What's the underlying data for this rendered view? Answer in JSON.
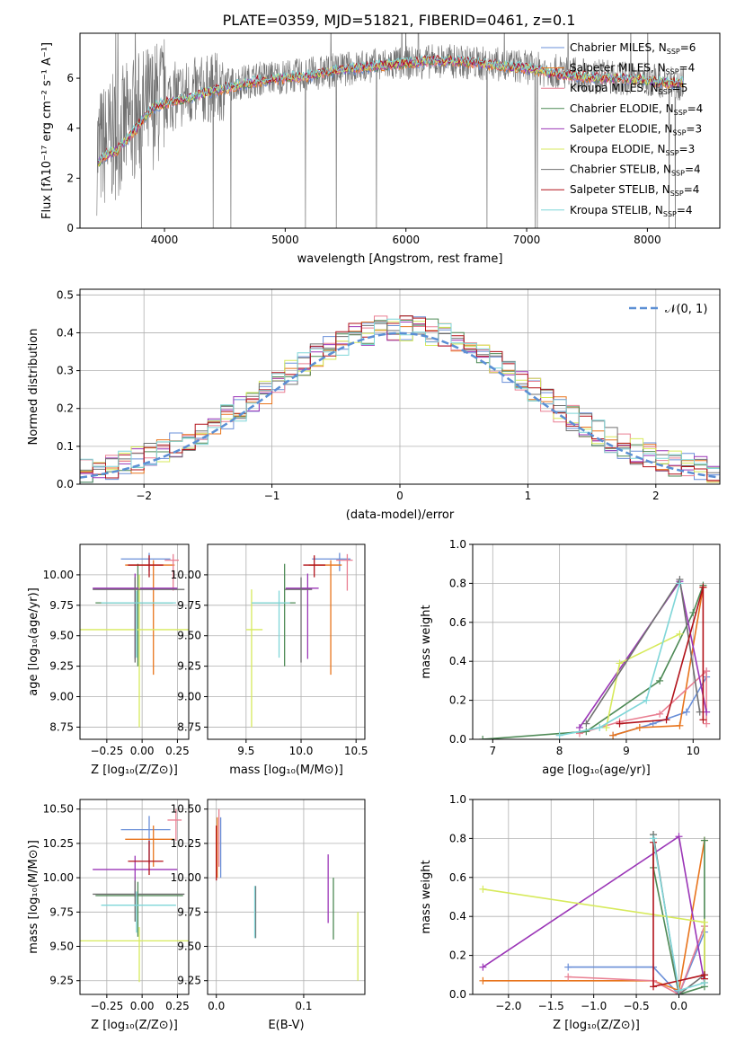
{
  "figure": {
    "title": "PLATE=0359, MJD=51821, FIBERID=0461, z=0.1"
  },
  "colors": {
    "Chabrier MILES": "#6a8fd8",
    "Salpeter MILES": "#e8741c",
    "Kroupa MILES": "#e97f92",
    "Chabrier ELODIE": "#4e8a56",
    "Salpeter ELODIE": "#9b36b7",
    "Kroupa ELODIE": "#d7ea5c",
    "Chabrier STELIB": "#707070",
    "Salpeter STELIB": "#b2121a",
    "Kroupa STELIB": "#7fd6d8",
    "normal_fit": "#5b8fd4"
  },
  "chart_data": [
    {
      "id": "spectrum",
      "type": "line",
      "xlabel": "wavelength [Angstrom, rest frame]",
      "ylabel": "Flux [fλ10⁻¹⁷ erg cm⁻² s⁻¹ A⁻¹]",
      "xlim": [
        3300,
        8600
      ],
      "ylim": [
        0,
        7.8
      ],
      "xticks": [
        4000,
        5000,
        6000,
        7000,
        8000
      ],
      "yticks": [
        0,
        2,
        4,
        6
      ],
      "grid": false,
      "legend_position": "right",
      "legend": [
        {
          "name": "Chabrier MILES",
          "nssp": "6"
        },
        {
          "name": "Salpeter MILES",
          "nssp": "4"
        },
        {
          "name": "Kroupa MILES",
          "nssp": "5"
        },
        {
          "name": "Chabrier ELODIE",
          "nssp": "4"
        },
        {
          "name": "Salpeter ELODIE",
          "nssp": "3"
        },
        {
          "name": "Kroupa ELODIE",
          "nssp": "3"
        },
        {
          "name": "Chabrier STELIB",
          "nssp": "4"
        },
        {
          "name": "Salpeter STELIB",
          "nssp": "4"
        },
        {
          "name": "Kroupa STELIB",
          "nssp": "4"
        }
      ],
      "legend_sub": "SSP",
      "data_series": {
        "name": "Chabrier STELIB",
        "x": [
          3450,
          3600,
          3800,
          4000,
          4200,
          4500,
          4800,
          5100,
          5400,
          5700,
          6000,
          6300,
          6600,
          6900,
          7200,
          7500,
          7800,
          8100,
          8300
        ],
        "y": [
          3.1,
          3.7,
          4.6,
          5.2,
          5.4,
          5.7,
          6.0,
          6.1,
          6.3,
          6.5,
          6.6,
          6.7,
          6.6,
          6.5,
          6.3,
          6.1,
          6.0,
          5.9,
          5.8
        ]
      },
      "model_x": [
        3450,
        3500,
        3600,
        3700,
        3800,
        3900,
        4000,
        4200,
        4400,
        4600,
        4800,
        5000,
        5200,
        5400,
        5600,
        5800,
        6000,
        6200,
        6400,
        6600,
        6800,
        7000,
        7200,
        7400,
        7600,
        7800,
        8000,
        8200,
        8300
      ],
      "model_y": [
        2.6,
        2.9,
        3.1,
        3.6,
        4.2,
        4.8,
        5.0,
        5.2,
        5.5,
        5.7,
        5.9,
        6.0,
        6.1,
        6.3,
        6.4,
        6.5,
        6.6,
        6.7,
        6.7,
        6.6,
        6.5,
        6.4,
        6.2,
        6.1,
        6.0,
        6.0,
        5.9,
        5.8,
        5.8
      ]
    },
    {
      "id": "residuals",
      "type": "area",
      "xlabel": "(data-model)/error",
      "ylabel": "Normed distribution",
      "xlim": [
        -2.5,
        2.5
      ],
      "ylim": [
        0,
        0.515
      ],
      "xticks": [
        -2,
        -1,
        0,
        1,
        2
      ],
      "yticks": [
        0.0,
        0.1,
        0.2,
        0.3,
        0.4,
        0.5
      ],
      "grid": true,
      "legend_position": "upper right",
      "normal_label": "𝒩(0, 1)",
      "bin_width": 0.1
    },
    {
      "id": "age-Z",
      "type": "scatter",
      "xlabel": "Z [log₁₀(Z/Z⊙)]",
      "ylabel": "age  [log₁₀(age/yr)]",
      "xlim": [
        -0.44,
        0.33
      ],
      "ylim": [
        8.65,
        10.25
      ],
      "xticks": [
        -0.25,
        0.0,
        0.25
      ],
      "yticks": [
        8.75,
        9.0,
        9.25,
        9.5,
        9.75,
        10.0
      ],
      "grid": true,
      "points": [
        {
          "series": "Chabrier MILES",
          "x": 0.05,
          "y": 10.13,
          "xerr": [
            0.2,
            0.15
          ],
          "yerr": [
            0.1,
            0.05
          ]
        },
        {
          "series": "Salpeter MILES",
          "x": 0.08,
          "y": 10.08,
          "xerr": [
            0.2,
            0.15
          ],
          "yerr": [
            0.9,
            0.04
          ]
        },
        {
          "series": "Kroupa MILES",
          "x": 0.22,
          "y": 10.12,
          "xerr": [
            0.06,
            0.04
          ],
          "yerr": [
            0.25,
            0.05
          ]
        },
        {
          "series": "Chabrier ELODIE",
          "x": -0.03,
          "y": 9.77,
          "xerr": [
            0.3,
            0.25
          ],
          "yerr": [
            0.52,
            0.32
          ]
        },
        {
          "series": "Salpeter ELODIE",
          "x": -0.05,
          "y": 9.89,
          "xerr": [
            0.3,
            0.3
          ],
          "yerr": [
            0.58,
            0.12
          ]
        },
        {
          "series": "Kroupa ELODIE",
          "x": -0.02,
          "y": 9.55,
          "xerr": [
            0.44,
            0.35
          ],
          "yerr": [
            0.8,
            0.45
          ]
        },
        {
          "series": "Chabrier STELIB",
          "x": -0.05,
          "y": 9.88,
          "xerr": [
            0.3,
            0.35
          ],
          "yerr": [
            0.6,
            0.1
          ]
        },
        {
          "series": "Salpeter STELIB",
          "x": 0.05,
          "y": 10.08,
          "xerr": [
            0.15,
            0.1
          ],
          "yerr": [
            0.1,
            0.08
          ]
        },
        {
          "series": "Kroupa STELIB",
          "x": -0.04,
          "y": 9.77,
          "xerr": [
            0.25,
            0.28
          ],
          "yerr": [
            0.45,
            0.1
          ]
        }
      ]
    },
    {
      "id": "age-mass",
      "type": "scatter",
      "xlabel": "mass [log₁₀(M/M⊙)]",
      "ylabel": "",
      "xlim": [
        9.15,
        10.58
      ],
      "ylim": [
        8.65,
        10.25
      ],
      "xticks": [
        9.5,
        10.0,
        10.5
      ],
      "yticks": [
        8.75,
        9.0,
        9.25,
        9.5,
        9.75,
        10.0
      ],
      "grid": true,
      "points": [
        {
          "series": "Chabrier MILES",
          "x": 10.35,
          "y": 10.13,
          "xerr": [
            0.25,
            0.1
          ],
          "yerr": [
            0.1,
            0.05
          ]
        },
        {
          "series": "Salpeter MILES",
          "x": 10.27,
          "y": 10.08,
          "xerr": [
            0.2,
            0.1
          ],
          "yerr": [
            0.9,
            0.04
          ]
        },
        {
          "series": "Kroupa MILES",
          "x": 10.42,
          "y": 10.12,
          "xerr": [
            0.1,
            0.05
          ],
          "yerr": [
            0.25,
            0.05
          ]
        },
        {
          "series": "Chabrier ELODIE",
          "x": 9.85,
          "y": 9.77,
          "xerr": [
            0.3,
            0.1
          ],
          "yerr": [
            0.52,
            0.32
          ]
        },
        {
          "series": "Salpeter ELODIE",
          "x": 10.06,
          "y": 9.89,
          "xerr": [
            0.2,
            0.1
          ],
          "yerr": [
            0.58,
            0.12
          ]
        },
        {
          "series": "Kroupa ELODIE",
          "x": 9.55,
          "y": 9.55,
          "xerr": [
            0.05,
            0.1
          ],
          "yerr": [
            0.8,
            0.33
          ]
        },
        {
          "series": "Chabrier STELIB",
          "x": 10.0,
          "y": 9.88,
          "xerr": [
            0.15,
            0.1
          ],
          "yerr": [
            0.6,
            0.1
          ]
        },
        {
          "series": "Salpeter STELIB",
          "x": 10.12,
          "y": 10.08,
          "xerr": [
            0.1,
            0.1
          ],
          "yerr": [
            0.1,
            0.08
          ]
        },
        {
          "series": "Kroupa STELIB",
          "x": 9.8,
          "y": 9.77,
          "xerr": [
            0.25,
            0.1
          ],
          "yerr": [
            0.45,
            0.1
          ]
        }
      ]
    },
    {
      "id": "weight-age",
      "type": "line",
      "xlabel": "age  [log₁₀(age/yr)]",
      "ylabel": "mass weight",
      "xlim": [
        6.7,
        10.4
      ],
      "ylim": [
        0,
        1.0
      ],
      "xticks": [
        7,
        8,
        9,
        10
      ],
      "yticks": [
        0.0,
        0.2,
        0.4,
        0.6,
        0.8,
        1.0
      ],
      "grid": true,
      "series": [
        {
          "name": "Chabrier MILES",
          "x": [
            8.8,
            9.4,
            9.9,
            10.2,
            10.2
          ],
          "y": [
            0.02,
            0.08,
            0.14,
            0.32,
            0.35
          ]
        },
        {
          "name": "Salpeter MILES",
          "x": [
            8.8,
            9.2,
            9.8,
            10.15
          ],
          "y": [
            0.02,
            0.06,
            0.07,
            0.78
          ]
        },
        {
          "name": "Kroupa MILES",
          "x": [
            8.3,
            8.9,
            9.5,
            10.2,
            10.2
          ],
          "y": [
            0.03,
            0.09,
            0.13,
            0.35,
            0.08
          ]
        },
        {
          "name": "Chabrier ELODIE",
          "x": [
            6.85,
            8.4,
            9.5,
            10.0,
            10.15
          ],
          "y": [
            0.0,
            0.04,
            0.3,
            0.65,
            0.79
          ]
        },
        {
          "name": "Salpeter ELODIE",
          "x": [
            8.3,
            9.8,
            10.2
          ],
          "y": [
            0.06,
            0.81,
            0.14
          ]
        },
        {
          "name": "Kroupa ELODIE",
          "x": [
            8.7,
            8.9,
            9.8
          ],
          "y": [
            0.06,
            0.39,
            0.54
          ]
        },
        {
          "name": "Chabrier STELIB",
          "x": [
            8.4,
            9.8,
            10.1
          ],
          "y": [
            0.08,
            0.82,
            0.14
          ]
        },
        {
          "name": "Salpeter STELIB",
          "x": [
            8.9,
            9.6,
            10.15,
            10.15
          ],
          "y": [
            0.08,
            0.1,
            0.78,
            0.1
          ]
        },
        {
          "name": "Kroupa STELIB",
          "x": [
            8.0,
            8.6,
            9.3,
            9.8
          ],
          "y": [
            0.02,
            0.06,
            0.2,
            0.8
          ]
        }
      ]
    },
    {
      "id": "mass-Z",
      "type": "scatter",
      "xlabel": "Z [log₁₀(Z/Z⊙)]",
      "ylabel": "mass [log₁₀(M/M⊙)]",
      "xlim": [
        -0.44,
        0.33
      ],
      "ylim": [
        9.15,
        10.57
      ],
      "xticks": [
        -0.25,
        0.0,
        0.25
      ],
      "yticks": [
        9.25,
        9.5,
        9.75,
        10.0,
        10.25,
        10.5
      ],
      "grid": true,
      "points": [
        {
          "series": "Chabrier MILES",
          "x": 0.05,
          "y": 10.35,
          "xerr": [
            0.2,
            0.15
          ],
          "yerr": [
            0.25,
            0.1
          ]
        },
        {
          "series": "Salpeter MILES",
          "x": 0.08,
          "y": 10.28,
          "xerr": [
            0.2,
            0.15
          ],
          "yerr": [
            0.2,
            0.1
          ]
        },
        {
          "series": "Kroupa MILES",
          "x": 0.24,
          "y": 10.42,
          "xerr": [
            0.06,
            0.04
          ],
          "yerr": [
            0.15,
            0.08
          ]
        },
        {
          "series": "Chabrier ELODIE",
          "x": -0.03,
          "y": 9.87,
          "xerr": [
            0.3,
            0.32
          ],
          "yerr": [
            0.3,
            0.1
          ]
        },
        {
          "series": "Salpeter ELODIE",
          "x": -0.05,
          "y": 10.06,
          "xerr": [
            0.3,
            0.3
          ],
          "yerr": [
            0.2,
            0.1
          ]
        },
        {
          "series": "Kroupa ELODIE",
          "x": -0.02,
          "y": 9.54,
          "xerr": [
            0.44,
            0.35
          ],
          "yerr": [
            0.3,
            0.1
          ]
        },
        {
          "series": "Chabrier STELIB",
          "x": -0.05,
          "y": 9.88,
          "xerr": [
            0.3,
            0.35
          ],
          "yerr": [
            0.2,
            0.1
          ]
        },
        {
          "series": "Salpeter STELIB",
          "x": 0.05,
          "y": 10.12,
          "xerr": [
            0.15,
            0.1
          ],
          "yerr": [
            0.1,
            0.15
          ]
        },
        {
          "series": "Kroupa STELIB",
          "x": -0.04,
          "y": 9.8,
          "xerr": [
            0.25,
            0.28
          ],
          "yerr": [
            0.2,
            0.1
          ]
        }
      ]
    },
    {
      "id": "mass-EBV",
      "type": "scatter",
      "xlabel": "E(B-V)",
      "ylabel": "",
      "xlim": [
        -0.01,
        0.17
      ],
      "ylim": [
        9.15,
        10.57
      ],
      "xticks": [
        0.0,
        0.1
      ],
      "yticks": [
        9.25,
        9.5,
        9.75,
        10.0,
        10.25,
        10.5
      ],
      "grid": true,
      "points": [
        {
          "series": "Chabrier MILES",
          "x": 0.005,
          "y": 10.22,
          "yerr": [
            0.22,
            0.22
          ]
        },
        {
          "series": "Salpeter MILES",
          "x": 0.001,
          "y": 10.22,
          "yerr": [
            0.22,
            0.22
          ]
        },
        {
          "series": "Kroupa MILES",
          "x": 0.003,
          "y": 10.3,
          "yerr": [
            0.22,
            0.2
          ]
        },
        {
          "series": "Chabrier ELODIE",
          "x": 0.134,
          "y": 9.8,
          "yerr": [
            0.25,
            0.2
          ]
        },
        {
          "series": "Salpeter ELODIE",
          "x": 0.128,
          "y": 9.92,
          "yerr": [
            0.25,
            0.25
          ]
        },
        {
          "series": "Kroupa ELODIE",
          "x": 0.162,
          "y": 9.5,
          "yerr": [
            0.25,
            0.25
          ]
        },
        {
          "series": "Chabrier STELIB",
          "x": 0.045,
          "y": 9.76,
          "yerr": [
            0.2,
            0.18
          ]
        },
        {
          "series": "Salpeter STELIB",
          "x": 0.0,
          "y": 10.18,
          "yerr": [
            0.2,
            0.2
          ]
        },
        {
          "series": "Kroupa STELIB",
          "x": 0.044,
          "y": 9.74,
          "yerr": [
            0.18,
            0.2
          ]
        }
      ]
    },
    {
      "id": "weight-Z",
      "type": "line",
      "xlabel": "Z [log₁₀(Z/Z⊙)]",
      "ylabel": "mass weight",
      "xlim": [
        -2.42,
        0.48
      ],
      "ylim": [
        0,
        1.0
      ],
      "xticks": [
        -2.0,
        -1.5,
        -1.0,
        -0.5,
        0.0
      ],
      "yticks": [
        0.0,
        0.2,
        0.4,
        0.6,
        0.8,
        1.0
      ],
      "grid": true,
      "series": [
        {
          "name": "Chabrier MILES",
          "x": [
            -1.3,
            -0.3,
            0.0,
            0.3,
            0.3
          ],
          "y": [
            0.14,
            0.14,
            0.0,
            0.32,
            0.35
          ]
        },
        {
          "name": "Salpeter MILES",
          "x": [
            -2.3,
            -0.3,
            0.0,
            0.3
          ],
          "y": [
            0.07,
            0.07,
            0.02,
            0.79
          ]
        },
        {
          "name": "Kroupa MILES",
          "x": [
            -1.3,
            -0.3,
            0.0,
            0.3,
            0.3
          ],
          "y": [
            0.09,
            0.07,
            0.0,
            0.35,
            0.08
          ]
        },
        {
          "name": "Chabrier ELODIE",
          "x": [
            -0.3,
            -0.3,
            0.0,
            0.3,
            0.3
          ],
          "y": [
            0.82,
            0.65,
            0.0,
            0.04,
            0.79
          ]
        },
        {
          "name": "Salpeter ELODIE",
          "x": [
            -2.3,
            0.0,
            0.3
          ],
          "y": [
            0.14,
            0.81,
            0.06
          ]
        },
        {
          "name": "Kroupa ELODIE",
          "x": [
            -2.3,
            0.3,
            0.3
          ],
          "y": [
            0.54,
            0.37,
            0.06
          ]
        },
        {
          "name": "Chabrier STELIB",
          "x": [
            -0.3,
            0.0,
            0.3
          ],
          "y": [
            0.82,
            0.0,
            0.1
          ]
        },
        {
          "name": "Salpeter STELIB",
          "x": [
            -0.3,
            -0.3,
            0.3,
            0.3
          ],
          "y": [
            0.78,
            0.04,
            0.1,
            0.08
          ]
        },
        {
          "name": "Kroupa STELIB",
          "x": [
            -0.3,
            0.0,
            0.3
          ],
          "y": [
            0.8,
            0.02,
            0.06
          ]
        }
      ]
    }
  ]
}
